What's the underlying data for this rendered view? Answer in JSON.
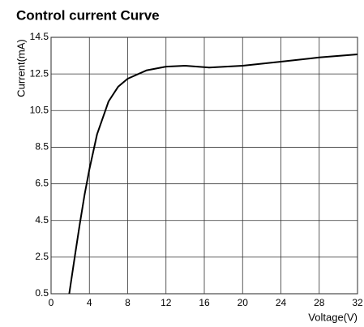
{
  "chart_data": {
    "type": "line",
    "title": "Control current Curve",
    "x_label": "Voltage(V)",
    "y_label": "Current(mA)",
    "x": [
      1.9,
      2.5,
      3,
      3.5,
      4,
      4.8,
      6,
      7,
      8,
      10,
      12,
      14,
      16.5,
      20,
      24,
      28,
      32
    ],
    "values": [
      0.5,
      2.6,
      4.3,
      5.9,
      7.3,
      9.2,
      11.0,
      11.8,
      12.24,
      12.7,
      12.9,
      12.95,
      12.85,
      12.95,
      13.17,
      13.4,
      13.57
    ],
    "color": "#000000",
    "xlim": [
      0,
      32
    ],
    "xticks": [
      0,
      4,
      8,
      12,
      16,
      20,
      24,
      28,
      32
    ],
    "ylim": [
      0.5,
      14.5
    ],
    "yticks": [
      0.5,
      2.5,
      4.5,
      6.5,
      8.5,
      10.5,
      12.5,
      14.5
    ],
    "grid": true
  }
}
